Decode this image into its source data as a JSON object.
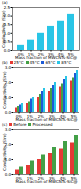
{
  "chart_data": [
    {
      "type": "bar",
      "title": "(a)",
      "x_label": "Mass fraction of MWCNTs-SiC@",
      "y_label": "Conductivity (S/m)",
      "categories": [
        "0%",
        "1%",
        "2%",
        "3%",
        "4%",
        "5%"
      ],
      "values": [
        0.3,
        0.6,
        1.0,
        1.4,
        1.7,
        2.1
      ],
      "color": "#29c5e6",
      "ylim": [
        0,
        2.5
      ],
      "yticks": [
        0,
        0.5,
        1,
        1.5,
        2,
        2.5
      ]
    },
    {
      "type": "bar",
      "title": "(b)",
      "x_label": "Mass fraction of MWCNTs-SiC@",
      "y_label": "Conductivity (S/m)",
      "categories": [
        "0%",
        "1%",
        "2%",
        "3%",
        "4%",
        "5%"
      ],
      "series": [
        {
          "name": "25°C",
          "color": "#e53935",
          "values": [
            0.3,
            0.6,
            1.0,
            1.4,
            1.7,
            2.1
          ]
        },
        {
          "name": "45°C",
          "color": "#43a047",
          "values": [
            0.4,
            0.7,
            1.2,
            1.6,
            1.9,
            2.3
          ]
        },
        {
          "name": "65°C",
          "color": "#1e5bd6",
          "values": [
            0.5,
            0.9,
            1.4,
            1.8,
            2.2,
            2.6
          ]
        },
        {
          "name": "85°C",
          "color": "#29c5e6",
          "values": [
            0.6,
            1.0,
            1.6,
            2.0,
            2.4,
            2.8
          ]
        }
      ],
      "ylim": [
        0,
        3
      ],
      "yticks": [
        0,
        1,
        2,
        3
      ],
      "legend": "top"
    },
    {
      "type": "bar",
      "title": "(c)",
      "x_label": "Mass fraction of MWCNTs-SiC@",
      "y_label": "Conductivity (S/m)",
      "categories": [
        "0%",
        "1%",
        "2%",
        "3%",
        "4%",
        "5%"
      ],
      "series": [
        {
          "name": "Before",
          "color": "#e53935",
          "values": [
            0.3,
            0.6,
            1.0,
            1.4,
            1.7,
            2.1
          ]
        },
        {
          "name": "Processed",
          "color": "#43a047",
          "values": [
            0.5,
            0.9,
            1.3,
            1.8,
            2.2,
            2.6
          ]
        }
      ],
      "ylim": [
        0,
        3
      ],
      "yticks": [
        0,
        1,
        2,
        3
      ],
      "legend": "top"
    }
  ]
}
